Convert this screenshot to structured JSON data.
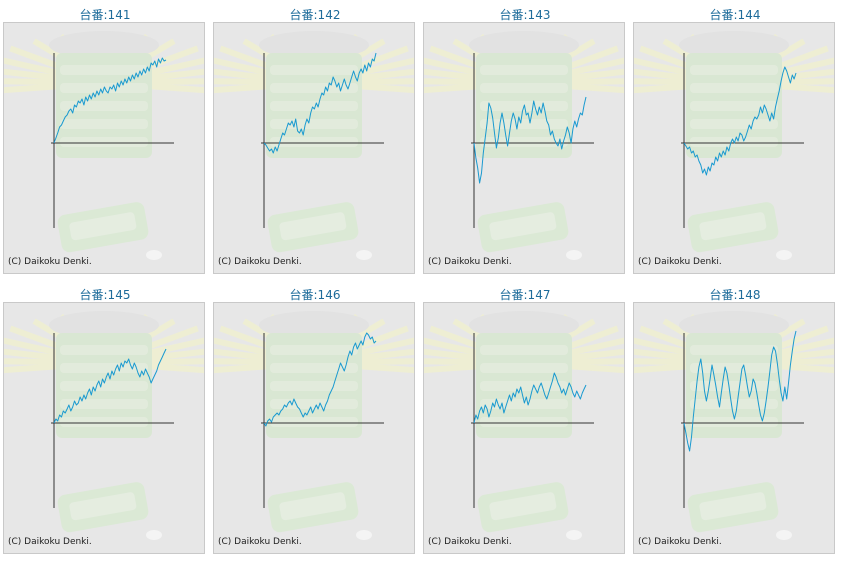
{
  "copyright": "(C) Daikoku Denki.",
  "colors": {
    "line": "#1a9ad0",
    "axis": "#333333",
    "title": "#1d6b9a",
    "panel": "#e7e7e7"
  },
  "chart_data": [
    {
      "type": "line",
      "title": "台番:141",
      "x": [
        0,
        1,
        2,
        3,
        4,
        5,
        6,
        7,
        8,
        9,
        10,
        11,
        12,
        13,
        14,
        15,
        16,
        17,
        18,
        19,
        20,
        21,
        22,
        23,
        24,
        25,
        26,
        27,
        28,
        29,
        30,
        31,
        32,
        33,
        34,
        35,
        36,
        37,
        38,
        39,
        40,
        41,
        42,
        43,
        44,
        45,
        46,
        47,
        48,
        49,
        50,
        51,
        52,
        53,
        54,
        55,
        56,
        57,
        58,
        59,
        60
      ],
      "values": [
        0,
        5,
        10,
        16,
        18,
        22,
        26,
        28,
        32,
        34,
        30,
        38,
        36,
        42,
        40,
        44,
        38,
        46,
        42,
        48,
        44,
        50,
        46,
        52,
        48,
        54,
        50,
        56,
        52,
        50,
        56,
        54,
        58,
        52,
        60,
        56,
        62,
        58,
        64,
        60,
        66,
        62,
        68,
        64,
        70,
        66,
        72,
        68,
        74,
        70,
        76,
        72,
        80,
        78,
        82,
        76,
        84,
        80,
        85,
        82,
        83
      ]
    },
    {
      "type": "line",
      "title": "台番:142",
      "x": [
        0,
        1,
        2,
        3,
        4,
        5,
        6,
        7,
        8,
        9,
        10,
        11,
        12,
        13,
        14,
        15,
        16,
        17,
        18,
        19,
        20,
        21,
        22,
        23,
        24,
        25,
        26,
        27,
        28,
        29,
        30,
        31,
        32,
        33,
        34,
        35,
        36,
        37,
        38,
        39,
        40,
        41,
        42,
        43,
        44,
        45,
        46,
        47,
        48,
        49,
        50,
        51,
        52,
        53,
        54,
        55,
        56,
        57,
        58,
        59,
        60
      ],
      "values": [
        0,
        -2,
        -5,
        -8,
        -6,
        -10,
        -4,
        -8,
        -2,
        4,
        10,
        8,
        14,
        20,
        18,
        22,
        16,
        24,
        12,
        10,
        14,
        8,
        18,
        24,
        20,
        30,
        36,
        34,
        40,
        36,
        44,
        50,
        48,
        56,
        52,
        60,
        58,
        66,
        62,
        56,
        60,
        52,
        58,
        64,
        58,
        54,
        60,
        66,
        72,
        66,
        62,
        70,
        74,
        70,
        78,
        72,
        80,
        76,
        84,
        82,
        90
      ]
    },
    {
      "type": "line",
      "title": "台番:143",
      "x": [
        0,
        1,
        2,
        3,
        4,
        5,
        6,
        7,
        8,
        9,
        10,
        11,
        12,
        13,
        14,
        15,
        16,
        17,
        18,
        19,
        20,
        21,
        22,
        23,
        24,
        25,
        26,
        27,
        28,
        29,
        30,
        31,
        32,
        33,
        34,
        35,
        36,
        37,
        38,
        39,
        40,
        41,
        42,
        43,
        44,
        45,
        46,
        47,
        48,
        49,
        50,
        51,
        52,
        53,
        54,
        55,
        56,
        57,
        58,
        59,
        60
      ],
      "values": [
        0,
        -15,
        -25,
        -40,
        -30,
        -10,
        5,
        20,
        40,
        35,
        25,
        10,
        -5,
        5,
        20,
        30,
        20,
        8,
        -3,
        10,
        22,
        30,
        24,
        14,
        26,
        20,
        32,
        38,
        28,
        30,
        20,
        30,
        42,
        34,
        28,
        36,
        30,
        40,
        32,
        22,
        18,
        8,
        12,
        4,
        0,
        -3,
        4,
        -6,
        2,
        8,
        16,
        10,
        0,
        14,
        22,
        16,
        24,
        30,
        28,
        38,
        46
      ]
    },
    {
      "type": "line",
      "title": "台番:144",
      "x": [
        0,
        1,
        2,
        3,
        4,
        5,
        6,
        7,
        8,
        9,
        10,
        11,
        12,
        13,
        14,
        15,
        16,
        17,
        18,
        19,
        20,
        21,
        22,
        23,
        24,
        25,
        26,
        27,
        28,
        29,
        30,
        31,
        32,
        33,
        34,
        35,
        36,
        37,
        38,
        39,
        40,
        41,
        42,
        43,
        44,
        45,
        46,
        47,
        48,
        49,
        50,
        51,
        52,
        53,
        54,
        55,
        56,
        57,
        58,
        59,
        60
      ],
      "values": [
        0,
        -3,
        -6,
        -4,
        -10,
        -8,
        -14,
        -12,
        -18,
        -22,
        -30,
        -26,
        -32,
        -24,
        -28,
        -20,
        -22,
        -14,
        -18,
        -10,
        -14,
        -8,
        -12,
        -4,
        -8,
        0,
        4,
        0,
        6,
        2,
        10,
        8,
        2,
        6,
        12,
        18,
        14,
        22,
        26,
        24,
        28,
        36,
        30,
        38,
        34,
        28,
        22,
        30,
        24,
        36,
        44,
        52,
        62,
        70,
        76,
        72,
        66,
        60,
        68,
        64,
        70
      ]
    },
    {
      "type": "line",
      "title": "台番:145",
      "x": [
        0,
        1,
        2,
        3,
        4,
        5,
        6,
        7,
        8,
        9,
        10,
        11,
        12,
        13,
        14,
        15,
        16,
        17,
        18,
        19,
        20,
        21,
        22,
        23,
        24,
        25,
        26,
        27,
        28,
        29,
        30,
        31,
        32,
        33,
        34,
        35,
        36,
        37,
        38,
        39,
        40,
        41,
        42,
        43,
        44,
        45,
        46,
        47,
        48,
        49,
        50,
        51,
        52,
        53,
        54,
        55,
        56,
        57,
        58,
        59,
        60
      ],
      "values": [
        0,
        4,
        2,
        8,
        6,
        12,
        10,
        14,
        18,
        12,
        16,
        22,
        18,
        20,
        26,
        22,
        28,
        24,
        30,
        34,
        28,
        36,
        32,
        38,
        42,
        36,
        44,
        40,
        46,
        50,
        44,
        52,
        48,
        54,
        58,
        52,
        60,
        56,
        62,
        60,
        64,
        58,
        54,
        60,
        56,
        50,
        46,
        52,
        48,
        54,
        50,
        46,
        40,
        44,
        48,
        52,
        58,
        62,
        66,
        70,
        74
      ]
    },
    {
      "type": "line",
      "title": "台番:146",
      "x": [
        0,
        1,
        2,
        3,
        4,
        5,
        6,
        7,
        8,
        9,
        10,
        11,
        12,
        13,
        14,
        15,
        16,
        17,
        18,
        19,
        20,
        21,
        22,
        23,
        24,
        25,
        26,
        27,
        28,
        29,
        30,
        31,
        32,
        33,
        34,
        35,
        36,
        37,
        38,
        39,
        40,
        41,
        42,
        43,
        44,
        45,
        46,
        47,
        48,
        49,
        50,
        51,
        52,
        53,
        54,
        55,
        56,
        57,
        58,
        59,
        60
      ],
      "values": [
        0,
        -3,
        2,
        4,
        1,
        6,
        8,
        10,
        8,
        12,
        14,
        18,
        16,
        20,
        22,
        18,
        24,
        20,
        16,
        14,
        10,
        6,
        10,
        8,
        12,
        16,
        10,
        14,
        18,
        14,
        20,
        16,
        12,
        18,
        22,
        28,
        32,
        36,
        42,
        48,
        54,
        60,
        56,
        52,
        58,
        66,
        72,
        68,
        76,
        80,
        74,
        78,
        82,
        78,
        86,
        90,
        88,
        84,
        86,
        80,
        82
      ]
    },
    {
      "type": "line",
      "title": "台番:147",
      "x": [
        0,
        1,
        2,
        3,
        4,
        5,
        6,
        7,
        8,
        9,
        10,
        11,
        12,
        13,
        14,
        15,
        16,
        17,
        18,
        19,
        20,
        21,
        22,
        23,
        24,
        25,
        26,
        27,
        28,
        29,
        30,
        31,
        32,
        33,
        34,
        35,
        36,
        37,
        38,
        39,
        40,
        41,
        42,
        43,
        44,
        45,
        46,
        47,
        48,
        49,
        50,
        51,
        52,
        53,
        54,
        55,
        56,
        57,
        58,
        59,
        60
      ],
      "values": [
        0,
        8,
        4,
        12,
        16,
        10,
        18,
        14,
        6,
        12,
        20,
        16,
        24,
        18,
        14,
        20,
        10,
        16,
        22,
        28,
        22,
        30,
        26,
        34,
        30,
        36,
        28,
        20,
        26,
        18,
        24,
        32,
        38,
        34,
        30,
        36,
        40,
        34,
        28,
        24,
        30,
        36,
        42,
        50,
        46,
        40,
        36,
        30,
        34,
        28,
        34,
        40,
        36,
        30,
        26,
        32,
        28,
        24,
        30,
        34,
        38
      ]
    },
    {
      "type": "line",
      "title": "台番:148",
      "x": [
        0,
        1,
        2,
        3,
        4,
        5,
        6,
        7,
        8,
        9,
        10,
        11,
        12,
        13,
        14,
        15,
        16,
        17,
        18,
        19,
        20,
        21,
        22,
        23,
        24,
        25,
        26,
        27,
        28,
        29,
        30,
        31,
        32,
        33,
        34,
        35,
        36,
        37,
        38,
        39,
        40,
        41,
        42,
        43,
        44,
        45,
        46,
        47,
        48,
        49,
        50,
        51,
        52,
        53,
        54,
        55,
        56,
        57,
        58,
        59,
        60
      ],
      "values": [
        0,
        -10,
        -20,
        -28,
        -14,
        6,
        24,
        42,
        56,
        64,
        50,
        32,
        22,
        32,
        44,
        58,
        48,
        38,
        26,
        16,
        30,
        44,
        56,
        50,
        38,
        24,
        12,
        4,
        12,
        26,
        40,
        54,
        58,
        48,
        36,
        26,
        32,
        44,
        40,
        30,
        18,
        8,
        2,
        10,
        22,
        36,
        52,
        68,
        76,
        72,
        60,
        44,
        30,
        22,
        36,
        24,
        40,
        58,
        72,
        84,
        92
      ]
    }
  ]
}
